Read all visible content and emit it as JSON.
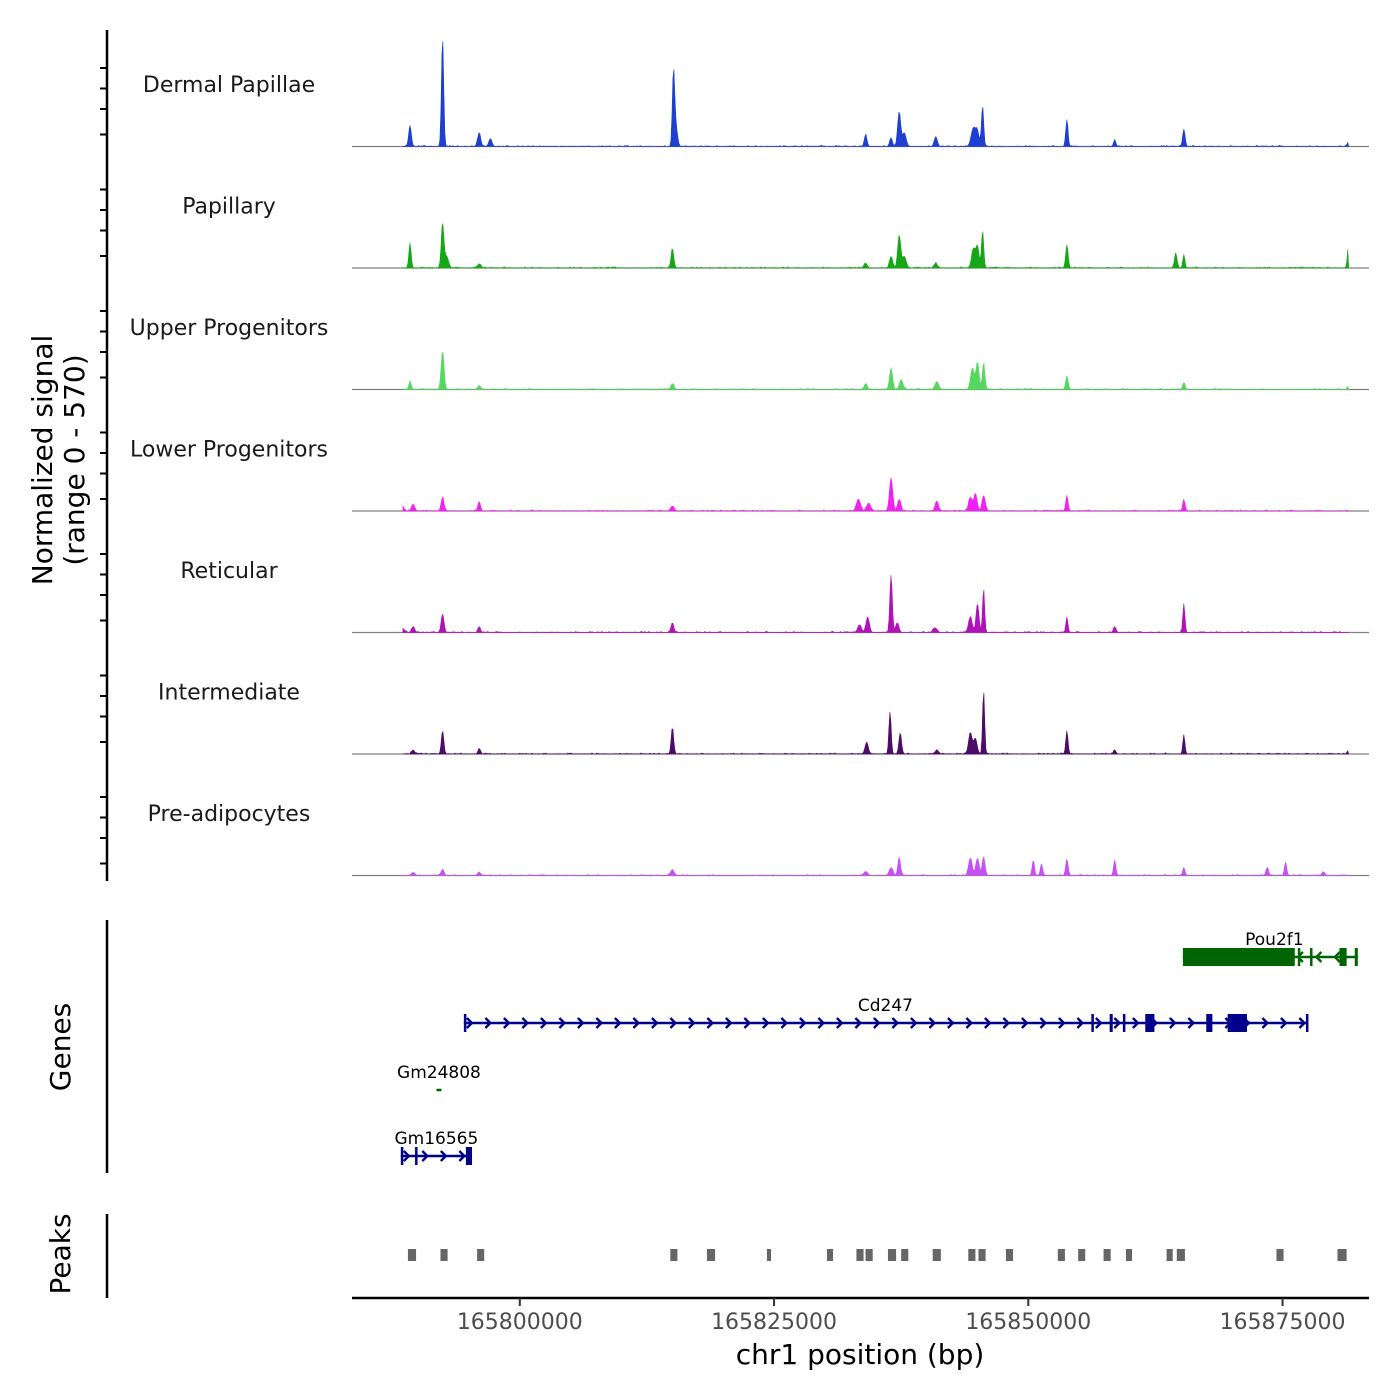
{
  "chart_data": {
    "type": "genome-tracks",
    "region": {
      "chromosome": "chr1",
      "start": 165783500,
      "end": 165883500
    },
    "xlabel": "chr1 position (bp)",
    "x_ticks": [
      165800000,
      165825000,
      165850000,
      165875000
    ],
    "x_tick_labels": [
      "165800000",
      "165825000",
      "165850000",
      "165875000"
    ],
    "ylabel_line1": "Normalized signal",
    "ylabel_line2": "(range 0 - 570)",
    "y_range": [
      0,
      570
    ],
    "signal_baseline_start": 165788500,
    "signal_baseline_end": 165881500,
    "coverage_tracks": [
      {
        "name": "Dermal Papillae",
        "color": "#1f3fd0",
        "peaks": [
          [
            165789200,
            110,
            130
          ],
          [
            165792400,
            570,
            110
          ],
          [
            165796000,
            70,
            150
          ],
          [
            165797100,
            40,
            150
          ],
          [
            165815100,
            350,
            110
          ],
          [
            165815300,
            120,
            170
          ],
          [
            165834000,
            60,
            130
          ],
          [
            165836500,
            45,
            130
          ],
          [
            165837300,
            180,
            150
          ],
          [
            165837800,
            70,
            180
          ],
          [
            165840900,
            50,
            150
          ],
          [
            165844600,
            95,
            220
          ],
          [
            165845000,
            70,
            160
          ],
          [
            165845500,
            210,
            110
          ],
          [
            165853800,
            140,
            110
          ],
          [
            165858500,
            35,
            110
          ],
          [
            165865300,
            90,
            120
          ],
          [
            165881500,
            25,
            120
          ]
        ]
      },
      {
        "name": "Papillary",
        "color": "#17a617",
        "peaks": [
          [
            165789200,
            130,
            110
          ],
          [
            165792400,
            230,
            130
          ],
          [
            165792800,
            60,
            180
          ],
          [
            165796000,
            20,
            180
          ],
          [
            165815000,
            100,
            130
          ],
          [
            165834000,
            25,
            150
          ],
          [
            165836500,
            60,
            150
          ],
          [
            165837300,
            170,
            150
          ],
          [
            165837800,
            60,
            180
          ],
          [
            165840900,
            25,
            150
          ],
          [
            165844600,
            100,
            180
          ],
          [
            165845000,
            110,
            150
          ],
          [
            165845500,
            190,
            110
          ],
          [
            165853800,
            120,
            120
          ],
          [
            165864500,
            80,
            120
          ],
          [
            165865300,
            70,
            100
          ],
          [
            165881500,
            120,
            110
          ]
        ]
      },
      {
        "name": "Upper Progenitors",
        "color": "#56d860",
        "peaks": [
          [
            165789200,
            40,
            120
          ],
          [
            165792400,
            200,
            140
          ],
          [
            165796000,
            20,
            150
          ],
          [
            165815000,
            30,
            150
          ],
          [
            165834000,
            30,
            150
          ],
          [
            165836500,
            110,
            150
          ],
          [
            165837500,
            50,
            170
          ],
          [
            165841000,
            40,
            180
          ],
          [
            165844500,
            110,
            180
          ],
          [
            165845000,
            140,
            150
          ],
          [
            165845600,
            140,
            120
          ],
          [
            165853800,
            70,
            120
          ],
          [
            165865300,
            35,
            120
          ],
          [
            165881500,
            20,
            120
          ]
        ]
      },
      {
        "name": "Lower Progenitors",
        "color": "#ef22ef",
        "peaks": [
          [
            165788500,
            20,
            150
          ],
          [
            165789500,
            35,
            160
          ],
          [
            165792400,
            70,
            140
          ],
          [
            165796000,
            50,
            120
          ],
          [
            165815000,
            25,
            170
          ],
          [
            165833300,
            60,
            200
          ],
          [
            165834300,
            40,
            200
          ],
          [
            165836500,
            170,
            160
          ],
          [
            165837300,
            60,
            160
          ],
          [
            165841000,
            50,
            160
          ],
          [
            165844300,
            70,
            180
          ],
          [
            165844800,
            90,
            160
          ],
          [
            165845600,
            80,
            160
          ],
          [
            165853800,
            80,
            110
          ],
          [
            165865300,
            60,
            110
          ]
        ]
      },
      {
        "name": "Reticular",
        "color": "#b012b8",
        "peaks": [
          [
            165788500,
            20,
            150
          ],
          [
            165789500,
            30,
            150
          ],
          [
            165792400,
            95,
            140
          ],
          [
            165796000,
            30,
            120
          ],
          [
            165815000,
            50,
            140
          ],
          [
            165833400,
            40,
            180
          ],
          [
            165834200,
            80,
            160
          ],
          [
            165836500,
            300,
            120
          ],
          [
            165837100,
            50,
            160
          ],
          [
            165840800,
            25,
            180
          ],
          [
            165844300,
            80,
            180
          ],
          [
            165845000,
            150,
            140
          ],
          [
            165845600,
            230,
            100
          ],
          [
            165853800,
            80,
            100
          ],
          [
            165858500,
            30,
            120
          ],
          [
            165865300,
            150,
            100
          ]
        ]
      },
      {
        "name": "Intermediate",
        "color": "#4c0d66",
        "peaks": [
          [
            165789500,
            20,
            160
          ],
          [
            165792400,
            120,
            120
          ],
          [
            165796000,
            30,
            110
          ],
          [
            165815000,
            140,
            120
          ],
          [
            165834100,
            60,
            160
          ],
          [
            165836400,
            220,
            110
          ],
          [
            165837400,
            110,
            130
          ],
          [
            165841000,
            20,
            170
          ],
          [
            165844300,
            110,
            180
          ],
          [
            165844800,
            80,
            160
          ],
          [
            165845600,
            330,
            100
          ],
          [
            165853800,
            120,
            110
          ],
          [
            165858500,
            20,
            120
          ],
          [
            165865300,
            100,
            100
          ],
          [
            165881500,
            20,
            120
          ]
        ]
      },
      {
        "name": "Pre-adipocytes",
        "color": "#c452f0",
        "peaks": [
          [
            165789500,
            15,
            160
          ],
          [
            165792400,
            30,
            150
          ],
          [
            165796000,
            15,
            160
          ],
          [
            165815000,
            30,
            170
          ],
          [
            165834000,
            20,
            180
          ],
          [
            165836500,
            40,
            180
          ],
          [
            165837300,
            90,
            130
          ],
          [
            165844300,
            90,
            180
          ],
          [
            165845000,
            90,
            160
          ],
          [
            165845600,
            95,
            140
          ],
          [
            165850500,
            80,
            110
          ],
          [
            165851300,
            60,
            110
          ],
          [
            165853800,
            85,
            120
          ],
          [
            165858500,
            80,
            110
          ],
          [
            165865300,
            40,
            110
          ],
          [
            165873500,
            40,
            130
          ],
          [
            165875300,
            70,
            110
          ],
          [
            165879000,
            20,
            130
          ],
          [
            165882200,
            20,
            130
          ]
        ]
      }
    ],
    "genes_title": "Genes",
    "genes": [
      {
        "name": "Pou2f1",
        "strand": "-",
        "color": "#006400",
        "start": 165865200,
        "end": 165882400,
        "exons": [
          [
            165865200,
            165876200
          ],
          [
            165876500,
            165876700
          ],
          [
            165877700,
            165877900
          ],
          [
            165880600,
            165881300
          ],
          [
            165882100,
            165882400
          ]
        ]
      },
      {
        "name": "Cd247",
        "strand": "+",
        "color": "#00008b",
        "start": 165794500,
        "end": 165877400,
        "exons": [
          [
            165794500,
            165794700
          ],
          [
            165856200,
            165856400
          ],
          [
            165858000,
            165858300
          ],
          [
            165859300,
            165859500
          ],
          [
            165861500,
            165862400
          ],
          [
            165867500,
            165868100
          ],
          [
            165869600,
            165871500
          ],
          [
            165877300,
            165877400
          ]
        ]
      },
      {
        "name": "Gm24808",
        "strand": "-",
        "color": "#006400",
        "start": 165791800,
        "end": 165792300,
        "exons": []
      },
      {
        "name": "Gm16565",
        "strand": "+",
        "color": "#00008b",
        "start": 165788300,
        "end": 165795300,
        "exons": [
          [
            165788300,
            165788500
          ],
          [
            165789700,
            165789900
          ],
          [
            165794700,
            165795300
          ]
        ]
      }
    ],
    "peaks_title": "Peaks",
    "peak_regions": [
      [
        165789000,
        165789800
      ],
      [
        165792200,
        165792900
      ],
      [
        165795800,
        165796500
      ],
      [
        165814800,
        165815500
      ],
      [
        165818400,
        165819200
      ],
      [
        165824300,
        165824700
      ],
      [
        165830200,
        165830800
      ],
      [
        165833100,
        165833800
      ],
      [
        165834000,
        165834700
      ],
      [
        165836200,
        165837000
      ],
      [
        165837500,
        165838200
      ],
      [
        165840600,
        165841400
      ],
      [
        165844100,
        165844800
      ],
      [
        165845100,
        165845800
      ],
      [
        165847800,
        165848500
      ],
      [
        165852900,
        165853600
      ],
      [
        165854900,
        165855600
      ],
      [
        165857400,
        165858100
      ],
      [
        165859600,
        165860200
      ],
      [
        165863600,
        165864200
      ],
      [
        165864600,
        165865400
      ],
      [
        165874400,
        165875100
      ],
      [
        165880400,
        165881300
      ]
    ],
    "signal_color_note": "baseline",
    "baseline_color": "#808080",
    "axis_color": "#000000",
    "peak_color": "#666666"
  }
}
